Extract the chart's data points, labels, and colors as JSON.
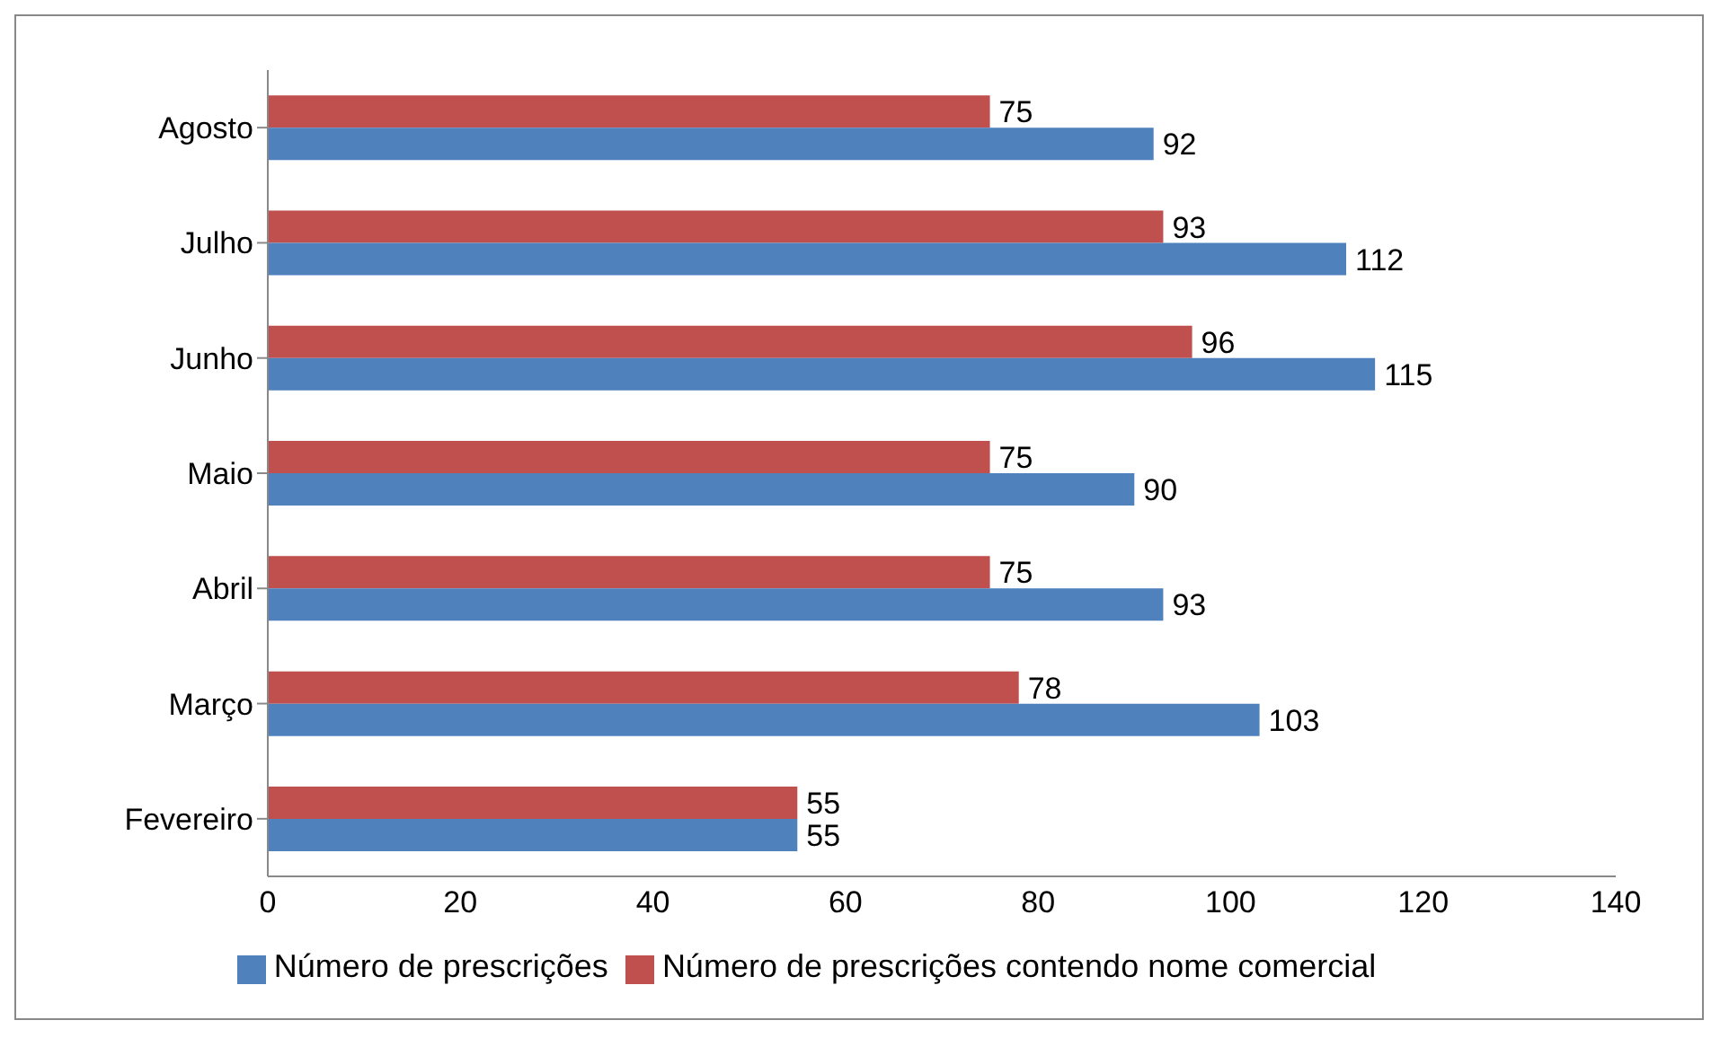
{
  "chart_data": {
    "type": "bar",
    "orientation": "horizontal",
    "categories": [
      "Agosto",
      "Julho",
      "Junho",
      "Maio",
      "Abril",
      "Março",
      "Fevereiro"
    ],
    "series": [
      {
        "name": "Número de prescrições contendo nome comercial",
        "color": "#c0504d",
        "values": [
          75,
          93,
          96,
          75,
          75,
          78,
          55
        ]
      },
      {
        "name": "Número de prescrições",
        "color": "#4f81bd",
        "values": [
          92,
          112,
          115,
          90,
          93,
          103,
          55
        ]
      }
    ],
    "xlim": [
      0,
      140
    ],
    "xticks": [
      0,
      20,
      40,
      60,
      80,
      100,
      120,
      140
    ],
    "data_labels": true,
    "grid": false,
    "legend": "bottom"
  }
}
